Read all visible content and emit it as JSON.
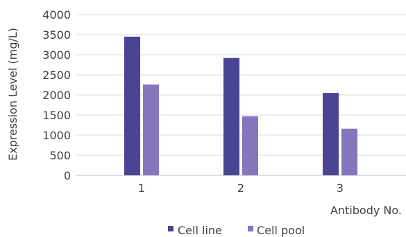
{
  "chart_data": {
    "type": "bar",
    "categories": [
      "1",
      "2",
      "3"
    ],
    "series": [
      {
        "name": "Cell line",
        "values": [
          3450,
          2920,
          2050
        ],
        "color": "#4a4592"
      },
      {
        "name": "Cell pool",
        "values": [
          2260,
          1470,
          1160
        ],
        "color": "#8776bb"
      }
    ],
    "title": "",
    "xlabel": "Antibody No.",
    "ylabel": "Expression Level (mg/L)",
    "ylim": [
      0,
      4000
    ],
    "yticks": [
      "0",
      "500",
      "1000",
      "1500",
      "2000",
      "2500",
      "3000",
      "3500",
      "4000"
    ],
    "grid": true,
    "legend_position": "bottom"
  }
}
